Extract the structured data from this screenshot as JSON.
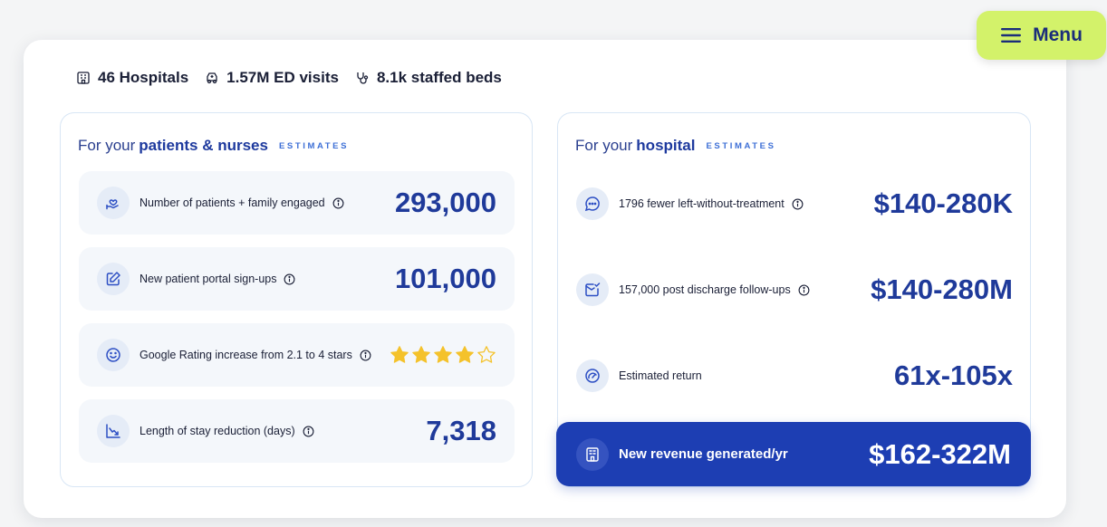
{
  "menu": {
    "label": "Menu"
  },
  "stats": [
    {
      "label": "46 Hospitals",
      "icon": "building-icon"
    },
    {
      "label": "1.57M ED visits",
      "icon": "ambulance-icon"
    },
    {
      "label": "8.1k staffed beds",
      "icon": "stethoscope-icon"
    }
  ],
  "patients_panel": {
    "prefix": "For your",
    "title": "patients & nurses",
    "tag": "ESTIMATES",
    "rows": [
      {
        "label": "Number of patients + family engaged",
        "value": "293,000",
        "icon": "heart-hand-icon"
      },
      {
        "label": "New patient portal sign-ups",
        "value": "101,000",
        "icon": "edit-icon"
      },
      {
        "label": "Google Rating increase from 2.1 to 4 stars",
        "rating": 4,
        "rating_max": 5,
        "icon": "smiley-icon"
      },
      {
        "label": "Length of stay reduction (days)",
        "value": "7,318",
        "icon": "trend-down-icon"
      }
    ]
  },
  "hospital_panel": {
    "prefix": "For your",
    "title": "hospital",
    "tag": "ESTIMATES",
    "rows": [
      {
        "label": "1796 fewer left-without-treatment",
        "value": "$140-280K",
        "icon": "chat-icon"
      },
      {
        "label": "157,000 post discharge follow-ups",
        "value": "$140-280M",
        "icon": "message-check-icon"
      },
      {
        "label": "Estimated return",
        "value": "61x-105x",
        "icon": "gauge-icon"
      }
    ],
    "revenue": {
      "label": "New revenue generated/yr",
      "value": "$162-322M",
      "icon": "hospital-building-icon"
    }
  },
  "colors": {
    "accent": "#1d3eb3",
    "menu_bg": "#d3f26a",
    "value_text": "#1f3a9a",
    "star": "#f4c22b"
  }
}
